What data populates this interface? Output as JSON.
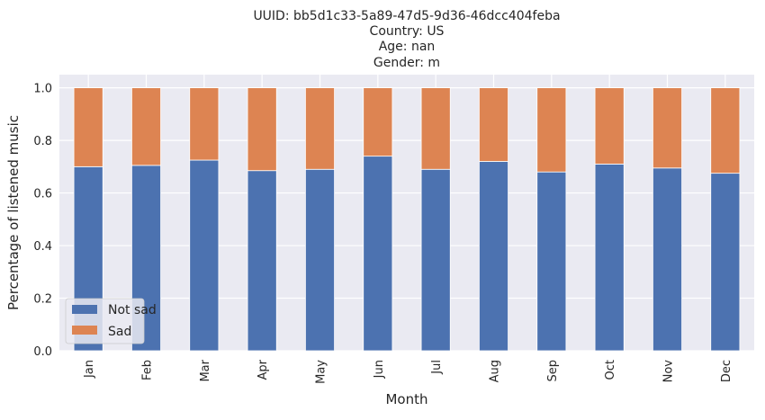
{
  "chart_data": {
    "type": "bar",
    "stacked": true,
    "title_lines": [
      "UUID: bb5d1c33-5a89-47d5-9d36-46dcc404feba",
      "Country: US",
      "Age: nan",
      "Gender: m"
    ],
    "xlabel": "Month",
    "ylabel": "Percentage of listened music",
    "ylim": [
      0,
      1.05
    ],
    "yticks": [
      "0.0",
      "0.2",
      "0.4",
      "0.6",
      "0.8",
      "1.0"
    ],
    "grid": true,
    "legend_position": "lower-left",
    "categories": [
      "Jan",
      "Feb",
      "Mar",
      "Apr",
      "May",
      "Jun",
      "Jul",
      "Aug",
      "Sep",
      "Oct",
      "Nov",
      "Dec"
    ],
    "series": [
      {
        "name": "Not sad",
        "color": "#4c72b0",
        "values": [
          0.7,
          0.705,
          0.725,
          0.685,
          0.69,
          0.74,
          0.69,
          0.72,
          0.68,
          0.71,
          0.695,
          0.675
        ]
      },
      {
        "name": "Sad",
        "color": "#dd8452",
        "values": [
          0.3,
          0.295,
          0.275,
          0.315,
          0.31,
          0.26,
          0.31,
          0.28,
          0.32,
          0.29,
          0.305,
          0.325
        ]
      }
    ]
  }
}
